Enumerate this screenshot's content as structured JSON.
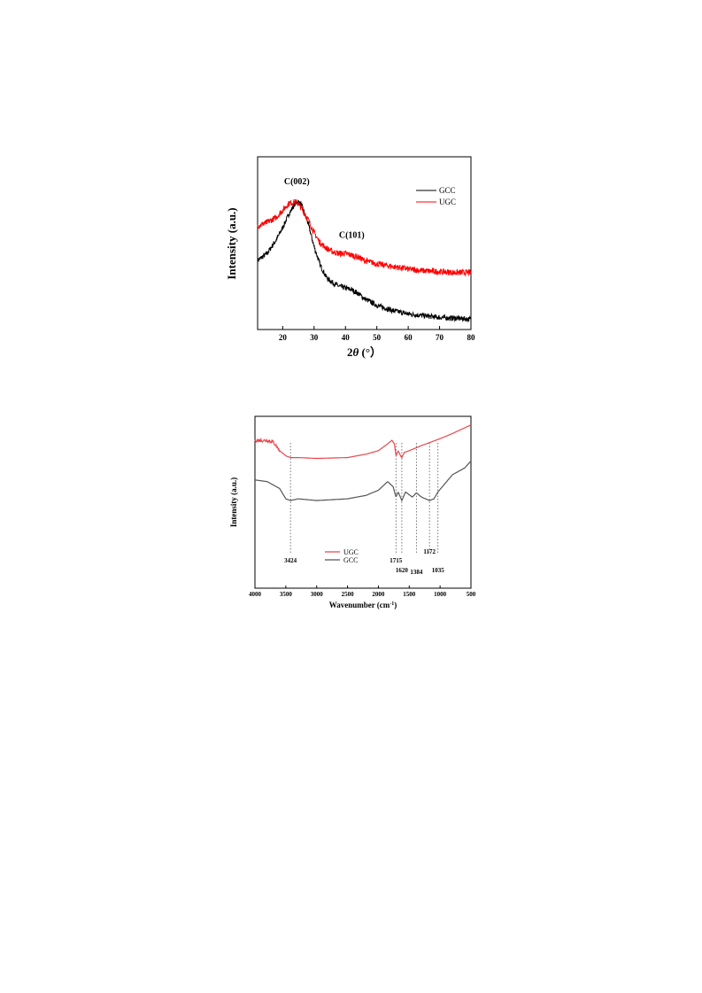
{
  "chart_data": [
    {
      "type": "line",
      "xlabel_main": "2",
      "xlabel_italic": "θ",
      "xlabel_unit": " (°）",
      "ylabel": "Intensity (a.u.)",
      "xlim": [
        12,
        80
      ],
      "x_ticks": [
        20,
        30,
        40,
        50,
        60,
        70,
        80
      ],
      "y_ticks": [],
      "grid": false,
      "legend_position": "top-right",
      "series": [
        {
          "name": "GCC",
          "color": "#000000",
          "x": [
            12,
            15,
            18,
            20,
            22,
            24,
            25,
            26,
            28,
            30,
            32,
            34,
            36,
            38,
            40,
            42,
            44,
            46,
            50,
            55,
            60,
            65,
            70,
            75,
            80
          ],
          "y": [
            0.4,
            0.44,
            0.52,
            0.59,
            0.67,
            0.73,
            0.74,
            0.72,
            0.62,
            0.48,
            0.37,
            0.3,
            0.27,
            0.25,
            0.24,
            0.23,
            0.21,
            0.18,
            0.14,
            0.11,
            0.09,
            0.08,
            0.07,
            0.065,
            0.06
          ]
        },
        {
          "name": "UGC",
          "color": "#ff0000",
          "x": [
            12,
            15,
            18,
            20,
            22,
            24,
            25,
            26,
            28,
            30,
            32,
            34,
            36,
            38,
            40,
            42,
            44,
            46,
            50,
            55,
            60,
            65,
            70,
            75,
            80
          ],
          "y": [
            0.6,
            0.62,
            0.65,
            0.69,
            0.73,
            0.74,
            0.73,
            0.7,
            0.64,
            0.56,
            0.5,
            0.47,
            0.45,
            0.44,
            0.44,
            0.43,
            0.42,
            0.4,
            0.38,
            0.365,
            0.35,
            0.34,
            0.335,
            0.33,
            0.33
          ]
        }
      ],
      "annotations": [
        {
          "text": "C(002)",
          "x": 24.5,
          "y": 0.84
        },
        {
          "text": "C(101)",
          "x": 42,
          "y": 0.53
        }
      ]
    },
    {
      "type": "line",
      "xlabel": "Wavenumber (cm",
      "xlabel_sup": "-1",
      "xlabel_end": ")",
      "ylabel": "Intensity (a.u.)",
      "xlim": [
        4000,
        500
      ],
      "x_ticks": [
        4000,
        3500,
        3000,
        2500,
        2000,
        1500,
        1000,
        500
      ],
      "y_ticks": [],
      "grid": false,
      "legend_position": "bottom-center",
      "series": [
        {
          "name": "UGC",
          "color": "#e8474c",
          "x": [
            4000,
            3800,
            3700,
            3600,
            3500,
            3424,
            3300,
            3000,
            2500,
            2200,
            2000,
            1850,
            1780,
            1740,
            1715,
            1680,
            1640,
            1620,
            1580,
            1500,
            1300,
            1000,
            800,
            500
          ],
          "y": [
            0.86,
            0.86,
            0.85,
            0.8,
            0.77,
            0.76,
            0.76,
            0.755,
            0.76,
            0.78,
            0.8,
            0.84,
            0.86,
            0.84,
            0.77,
            0.8,
            0.77,
            0.76,
            0.79,
            0.8,
            0.83,
            0.87,
            0.9,
            0.95
          ]
        },
        {
          "name": "GCC",
          "color": "#555555",
          "x": [
            4000,
            3800,
            3600,
            3500,
            3424,
            3300,
            3000,
            2500,
            2200,
            2000,
            1850,
            1760,
            1715,
            1680,
            1620,
            1560,
            1450,
            1384,
            1300,
            1172,
            1100,
            1035,
            800,
            600,
            500
          ],
          "y": [
            0.63,
            0.62,
            0.58,
            0.52,
            0.51,
            0.52,
            0.51,
            0.52,
            0.54,
            0.57,
            0.62,
            0.59,
            0.53,
            0.56,
            0.51,
            0.56,
            0.53,
            0.555,
            0.53,
            0.51,
            0.52,
            0.56,
            0.66,
            0.7,
            0.74
          ]
        }
      ],
      "reference_lines": [
        3424,
        1715,
        1620,
        1384,
        1172,
        1035
      ],
      "annotations": [
        {
          "text": "3424",
          "x": 3424,
          "row": 1
        },
        {
          "text": "1715",
          "x": 1715,
          "row": 1
        },
        {
          "text": "1620",
          "x": 1620,
          "row": 2
        },
        {
          "text": "1384",
          "x": 1384,
          "row": 3
        },
        {
          "text": "1172",
          "x": 1172,
          "row": 0
        },
        {
          "text": "1035",
          "x": 1035,
          "row": 2
        }
      ]
    }
  ]
}
